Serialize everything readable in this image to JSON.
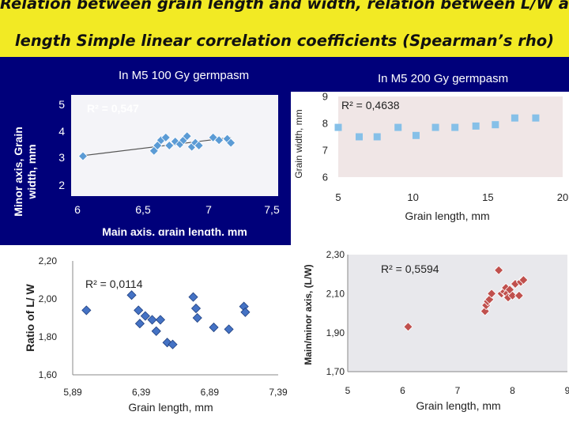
{
  "slide": {
    "title_line1": "Relation between grain length and width, relation between L/W and",
    "title_line2": "length Simple linear correlation coefficients (Spearman’s rho)",
    "colors": {
      "header_bg": "#f2ea24",
      "slide_bg": "#00007a"
    }
  },
  "chart_data": [
    {
      "type": "scatter",
      "title": "In M5 100 Gy germpasm",
      "xlabel": "Main axis, grain length, mm",
      "ylabel": "Minor axis, Grain width, mm",
      "r2_label": "R² = 0,547",
      "xlim": [
        5.8,
        7.55
      ],
      "ylim": [
        1.6,
        5.4
      ],
      "xticks": [
        "6",
        "6,5",
        "7",
        "7,5"
      ],
      "yticks": [
        "2",
        "3",
        "4",
        "5"
      ],
      "marker": "diamond",
      "color": "#5b9bd5",
      "x": [
        5.9,
        6.5,
        6.53,
        6.56,
        6.6,
        6.63,
        6.68,
        6.72,
        6.75,
        6.78,
        6.82,
        6.85,
        6.88,
        7.0,
        7.05,
        7.12,
        7.15
      ],
      "y": [
        3.1,
        3.3,
        3.5,
        3.7,
        3.8,
        3.5,
        3.65,
        3.55,
        3.7,
        3.85,
        3.45,
        3.6,
        3.5,
        3.8,
        3.7,
        3.75,
        3.6
      ],
      "trend": {
        "x": [
          5.9,
          7.15
        ],
        "y": [
          3.12,
          3.8
        ]
      }
    },
    {
      "type": "scatter",
      "title": "In M5 200 Gy germpasm",
      "xlabel": "Grain length, mm",
      "ylabel": "Grain width, mm",
      "r2_label": "R² = 0,4638",
      "xlim": [
        5,
        20
      ],
      "ylim": [
        6,
        9
      ],
      "xticks": [
        "5",
        "10",
        "15",
        "20"
      ],
      "yticks": [
        "6",
        "7",
        "8",
        "9"
      ],
      "marker": "square",
      "color": "#86c0e8",
      "x": [
        5.0,
        6.4,
        7.6,
        9.0,
        10.2,
        11.5,
        12.8,
        14.2,
        15.5,
        16.8,
        18.2
      ],
      "y": [
        7.85,
        7.5,
        7.5,
        7.85,
        7.55,
        7.85,
        7.85,
        7.9,
        7.95,
        8.2,
        8.2
      ]
    },
    {
      "type": "scatter",
      "title": "",
      "xlabel": "Grain length, mm",
      "ylabel": "Ratio of L/ W",
      "r2_label": "R² = 0,0114",
      "xlim": [
        5.89,
        7.39
      ],
      "ylim": [
        1.6,
        2.2
      ],
      "xticks": [
        "5,89",
        "6,39",
        "6,89",
        "7,39"
      ],
      "yticks": [
        "1,60",
        "1,80",
        "2,00",
        "2,20"
      ],
      "marker": "diamond",
      "color": "#4472c4",
      "x": [
        5.99,
        6.32,
        6.37,
        6.38,
        6.42,
        6.47,
        6.5,
        6.53,
        6.58,
        6.62,
        6.77,
        6.79,
        6.8,
        6.92,
        7.03,
        7.14,
        7.15
      ],
      "y": [
        1.94,
        2.02,
        1.94,
        1.87,
        1.91,
        1.89,
        1.83,
        1.89,
        1.77,
        1.76,
        2.01,
        1.95,
        1.9,
        1.85,
        1.84,
        1.96,
        1.93
      ]
    },
    {
      "type": "scatter",
      "title": "",
      "xlabel": "Grain length, mm",
      "ylabel": "Main/minor axis, (L/W)",
      "r2_label": "R² = 0,5594",
      "xlim": [
        5,
        9
      ],
      "ylim": [
        1.7,
        2.3
      ],
      "xticks": [
        "5",
        "6",
        "7",
        "8",
        "9"
      ],
      "yticks": [
        "1,70",
        "1,90",
        "2,10",
        "2,30"
      ],
      "marker": "diamond",
      "color": "#c0504d",
      "x": [
        6.1,
        7.5,
        7.52,
        7.55,
        7.58,
        7.62,
        7.75,
        7.8,
        7.85,
        7.88,
        7.9,
        7.92,
        7.95,
        8.0,
        8.05,
        8.12,
        8.15,
        8.2
      ],
      "y": [
        1.93,
        2.01,
        2.04,
        2.06,
        2.07,
        2.1,
        2.22,
        2.1,
        2.11,
        2.13,
        2.1,
        2.08,
        2.12,
        2.09,
        2.15,
        2.09,
        2.16,
        2.17
      ]
    }
  ]
}
